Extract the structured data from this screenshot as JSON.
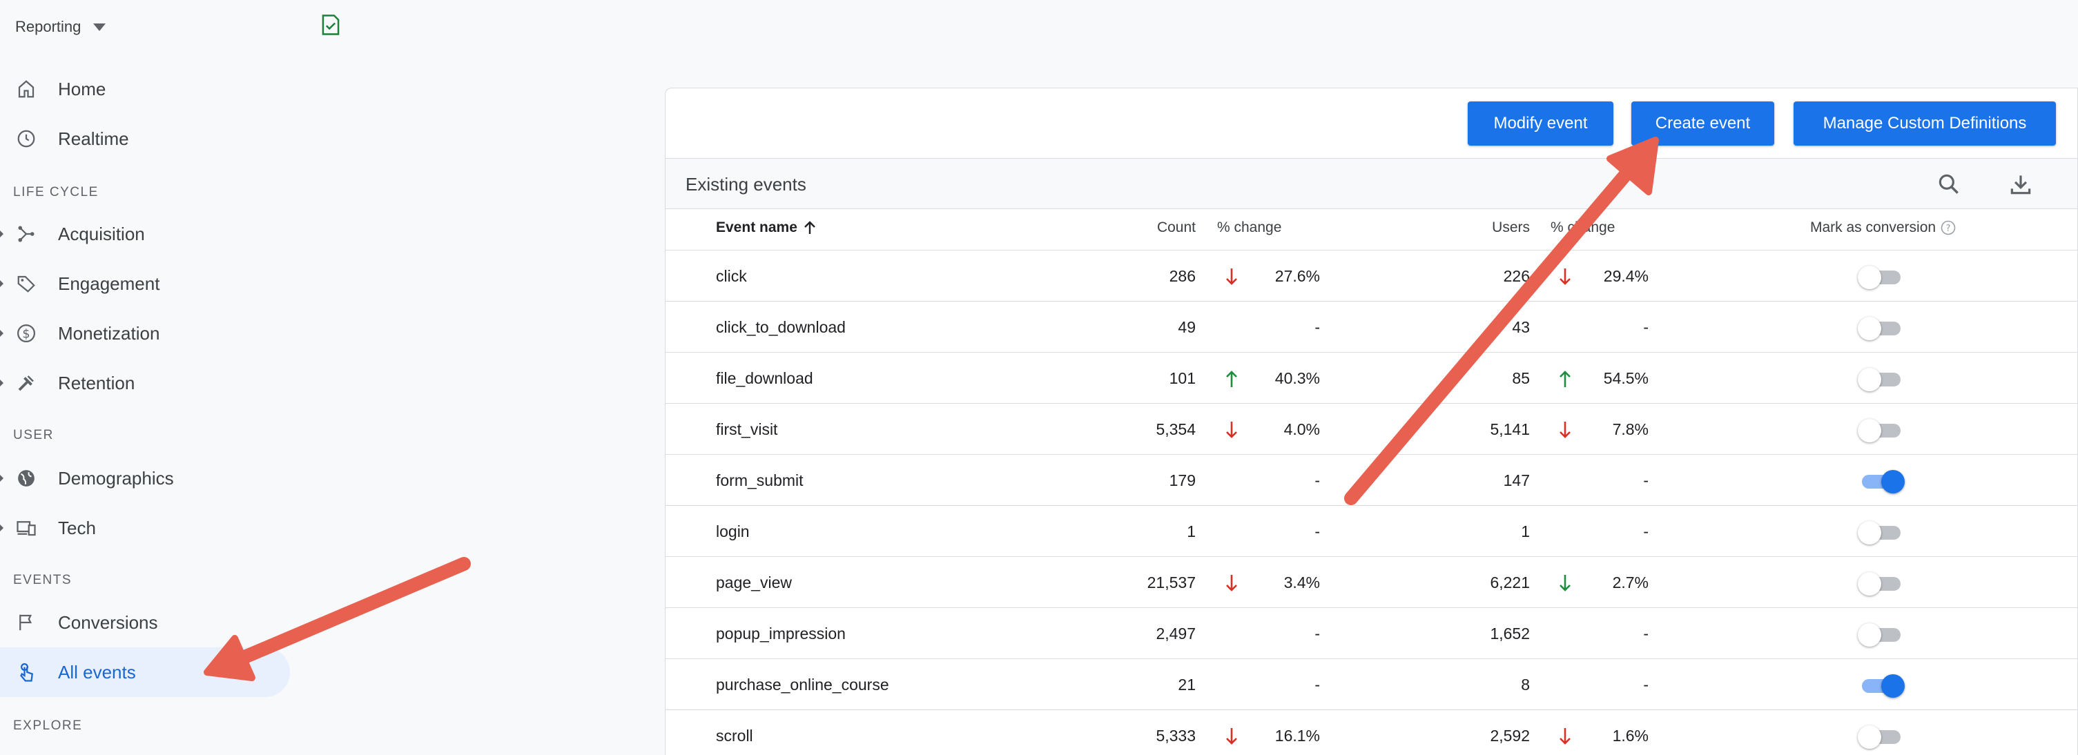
{
  "sidebar": {
    "reporting_label": "Reporting",
    "items": {
      "home": "Home",
      "realtime": "Realtime",
      "acquisition": "Acquisition",
      "engagement": "Engagement",
      "monetization": "Monetization",
      "retention": "Retention",
      "demographics": "Demographics",
      "tech": "Tech",
      "conversions": "Conversions",
      "all_events": "All events"
    },
    "sections": {
      "life_cycle": "LIFE CYCLE",
      "user": "USER",
      "events": "EVENTS",
      "explore": "EXPLORE"
    }
  },
  "toolbar": {
    "modify_event": "Modify event",
    "create_event": "Create event",
    "manage_definitions": "Manage Custom Definitions"
  },
  "table": {
    "title": "Existing events",
    "headers": {
      "event_name": "Event name",
      "count": "Count",
      "count_change": "% change",
      "users": "Users",
      "users_change": "% change",
      "mark_conversion": "Mark as conversion"
    },
    "rows": [
      {
        "name": "click",
        "count": "286",
        "count_change": "27.6%",
        "count_dir": "down",
        "users": "226",
        "users_change": "29.4%",
        "users_dir": "down",
        "conversion": false
      },
      {
        "name": "click_to_download",
        "count": "49",
        "count_change": "-",
        "count_dir": "none",
        "users": "43",
        "users_change": "-",
        "users_dir": "none",
        "conversion": false
      },
      {
        "name": "file_download",
        "count": "101",
        "count_change": "40.3%",
        "count_dir": "up",
        "users": "85",
        "users_change": "54.5%",
        "users_dir": "up",
        "conversion": false
      },
      {
        "name": "first_visit",
        "count": "5,354",
        "count_change": "4.0%",
        "count_dir": "down",
        "users": "5,141",
        "users_change": "7.8%",
        "users_dir": "down",
        "conversion": false
      },
      {
        "name": "form_submit",
        "count": "179",
        "count_change": "-",
        "count_dir": "none",
        "users": "147",
        "users_change": "-",
        "users_dir": "none",
        "conversion": true
      },
      {
        "name": "login",
        "count": "1",
        "count_change": "-",
        "count_dir": "none",
        "users": "1",
        "users_change": "-",
        "users_dir": "none",
        "conversion": false
      },
      {
        "name": "page_view",
        "count": "21,537",
        "count_change": "3.4%",
        "count_dir": "down",
        "users": "6,221",
        "users_change": "2.7%",
        "users_dir": "down-green",
        "conversion": false
      },
      {
        "name": "popup_impression",
        "count": "2,497",
        "count_change": "-",
        "count_dir": "none",
        "users": "1,652",
        "users_change": "-",
        "users_dir": "none",
        "conversion": false
      },
      {
        "name": "purchase_online_course",
        "count": "21",
        "count_change": "-",
        "count_dir": "none",
        "users": "8",
        "users_change": "-",
        "users_dir": "none",
        "conversion": true
      },
      {
        "name": "scroll",
        "count": "5,333",
        "count_change": "16.1%",
        "count_dir": "down",
        "users": "2,592",
        "users_change": "1.6%",
        "users_dir": "down",
        "conversion": false
      }
    ]
  },
  "colors": {
    "primary": "#1a73e8",
    "down": "#d93025",
    "up": "#1e8e3e",
    "annotation_arrow": "#e8604f"
  }
}
